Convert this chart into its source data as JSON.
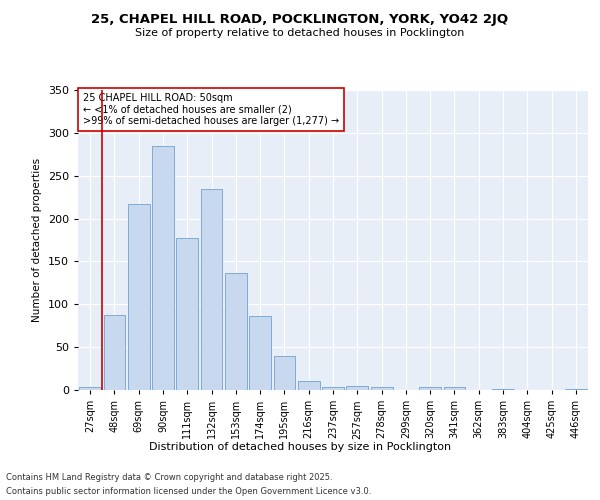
{
  "title_line1": "25, CHAPEL HILL ROAD, POCKLINGTON, YORK, YO42 2JQ",
  "title_line2": "Size of property relative to detached houses in Pocklington",
  "xlabel": "Distribution of detached houses by size in Pocklington",
  "ylabel": "Number of detached properties",
  "bar_color": "#c8d8ee",
  "bar_edge_color": "#7fabd4",
  "background_color": "#e8eef8",
  "annotation_box_color": "#cc0000",
  "vline_color": "#cc0000",
  "vline_x": 0.5,
  "annotation_text": "25 CHAPEL HILL ROAD: 50sqm\n← <1% of detached houses are smaller (2)\n>99% of semi-detached houses are larger (1,277) →",
  "categories": [
    "27sqm",
    "48sqm",
    "69sqm",
    "90sqm",
    "111sqm",
    "132sqm",
    "153sqm",
    "174sqm",
    "195sqm",
    "216sqm",
    "237sqm",
    "257sqm",
    "278sqm",
    "299sqm",
    "320sqm",
    "341sqm",
    "362sqm",
    "383sqm",
    "404sqm",
    "425sqm",
    "446sqm"
  ],
  "values": [
    3,
    87,
    217,
    285,
    177,
    234,
    137,
    86,
    40,
    10,
    3,
    5,
    3,
    0,
    3,
    3,
    0,
    1,
    0,
    0,
    1
  ],
  "ylim": [
    0,
    350
  ],
  "yticks": [
    0,
    50,
    100,
    150,
    200,
    250,
    300,
    350
  ],
  "footnote_line1": "Contains HM Land Registry data © Crown copyright and database right 2025.",
  "footnote_line2": "Contains public sector information licensed under the Open Government Licence v3.0."
}
